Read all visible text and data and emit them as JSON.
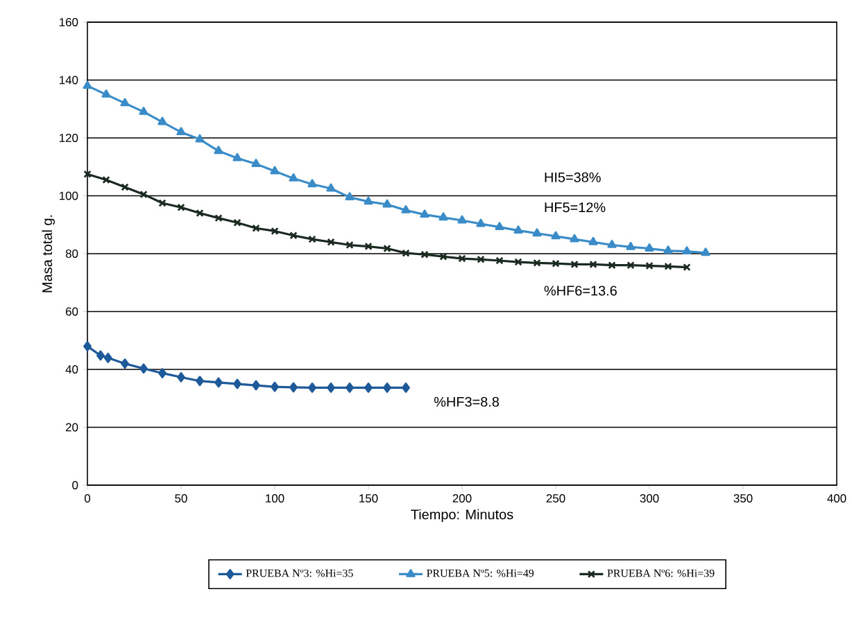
{
  "chart_data": {
    "type": "line",
    "xlabel": "Tiempo: Minutos",
    "ylabel": "Masa total g.",
    "xlim": [
      0,
      400
    ],
    "ylim": [
      0,
      160
    ],
    "xticks": [
      0,
      50,
      100,
      150,
      200,
      250,
      300,
      350,
      400
    ],
    "yticks": [
      0,
      20,
      40,
      60,
      80,
      100,
      120,
      140,
      160
    ],
    "grid": "y",
    "legend": "bottom",
    "line_style": "solid",
    "series": [
      {
        "name": "PRUEBA Nº3: %Hi=35",
        "color": "#1e5a9a",
        "marker": "diamond",
        "x": [
          0,
          7,
          11,
          20,
          30,
          40,
          50,
          60,
          70,
          80,
          90,
          100,
          110,
          120,
          130,
          140,
          150,
          160,
          170
        ],
        "values": [
          48,
          44.8,
          44,
          42,
          40.3,
          38.7,
          37.3,
          36,
          35.5,
          35,
          34.5,
          34,
          33.8,
          33.7,
          33.7,
          33.7,
          33.7,
          33.7,
          33.7
        ]
      },
      {
        "name": "PRUEBA Nº5: %Hi=49",
        "color": "#3a8cc8",
        "marker": "triangle",
        "x": [
          0,
          10,
          20,
          30,
          40,
          50,
          60,
          70,
          80,
          90,
          100,
          110,
          120,
          130,
          140,
          150,
          160,
          170,
          180,
          190,
          200,
          210,
          220,
          230,
          240,
          250,
          260,
          270,
          280,
          290,
          300,
          310,
          320,
          330
        ],
        "values": [
          138,
          135,
          132,
          129,
          125.5,
          122,
          119.5,
          115.5,
          113,
          111,
          108.5,
          106,
          104,
          102.5,
          99.5,
          98,
          97,
          95,
          93.5,
          92.5,
          91.5,
          90.3,
          89.2,
          88,
          87,
          86,
          85,
          84,
          83,
          82.3,
          81.8,
          81,
          80.8,
          80.3
        ]
      },
      {
        "name": "PRUEBA Nº6: %Hi=39",
        "color": "#1a2a20",
        "marker": "cross",
        "x": [
          0,
          10,
          20,
          30,
          40,
          50,
          60,
          70,
          80,
          90,
          100,
          110,
          120,
          130,
          140,
          150,
          160,
          170,
          180,
          190,
          200,
          210,
          220,
          230,
          240,
          250,
          260,
          270,
          280,
          290,
          300,
          310,
          320
        ],
        "values": [
          107.5,
          105.5,
          103,
          100.5,
          97.5,
          96,
          94,
          92.3,
          90.7,
          88.8,
          87.8,
          86.3,
          85,
          84,
          83,
          82.5,
          81.8,
          80.2,
          79.7,
          79,
          78.3,
          78,
          77.6,
          77.1,
          76.8,
          76.6,
          76.3,
          76.3,
          76,
          76,
          75.8,
          75.6,
          75.3
        ]
      }
    ],
    "annotations": [
      "HI5=38%",
      "HF5=12%",
      "%HF6=13.6",
      "%HF3=8.8"
    ]
  }
}
